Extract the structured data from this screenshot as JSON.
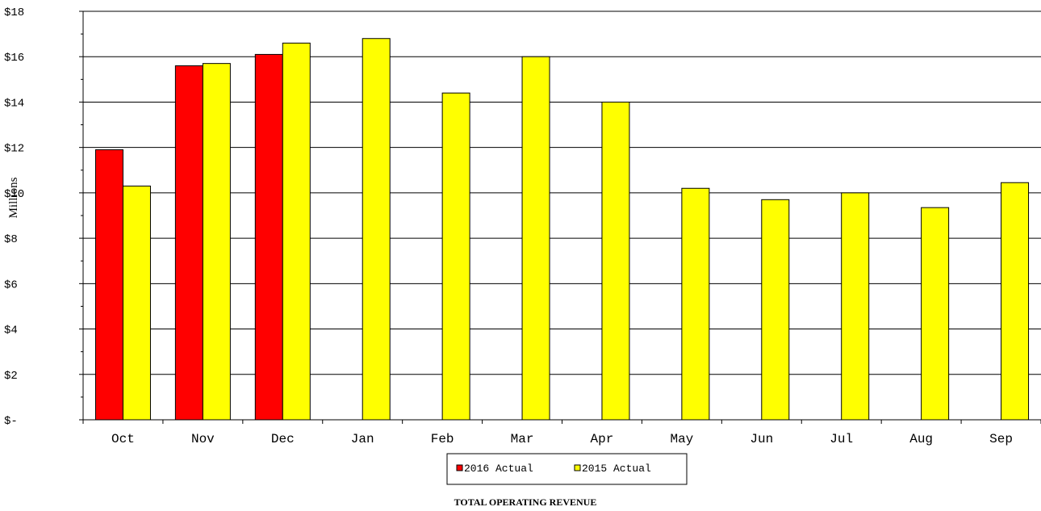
{
  "chart_data": {
    "type": "bar",
    "title": "TOTAL OPERATING REVENUE",
    "ylabel": "Millions",
    "xlabel": "",
    "ylim": [
      0,
      18
    ],
    "y_ticks": [
      "$-",
      "$2",
      "$4",
      "$6",
      "$8",
      "$10",
      "$12",
      "$14",
      "$16",
      "$18"
    ],
    "y_tick_values": [
      0,
      2,
      4,
      6,
      8,
      10,
      12,
      14,
      16,
      18
    ],
    "grid": true,
    "legend_position": "bottom",
    "categories": [
      "Oct",
      "Nov",
      "Dec",
      "Jan",
      "Feb",
      "Mar",
      "Apr",
      "May",
      "Jun",
      "Jul",
      "Aug",
      "Sep"
    ],
    "series": [
      {
        "name": "2016 Actual",
        "color": "#ff0000",
        "values": [
          11.9,
          15.6,
          16.1,
          null,
          null,
          null,
          null,
          null,
          null,
          null,
          null,
          null
        ]
      },
      {
        "name": "2015 Actual",
        "color": "#ffff00",
        "values": [
          10.3,
          15.7,
          16.6,
          16.8,
          14.4,
          16.0,
          14.0,
          10.2,
          9.7,
          10.0,
          9.35,
          10.45
        ]
      }
    ]
  }
}
